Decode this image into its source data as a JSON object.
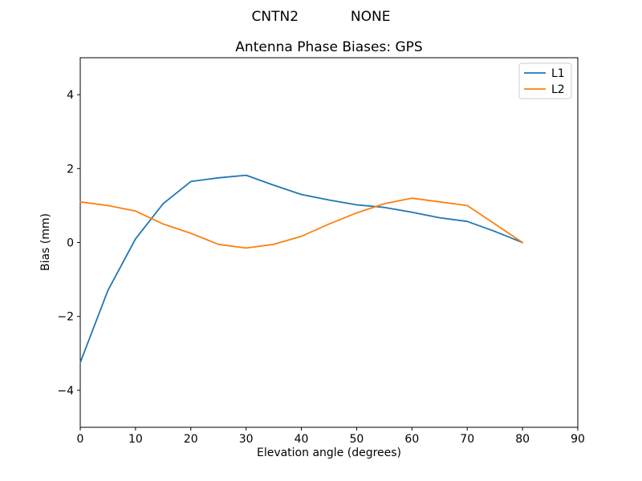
{
  "figure": {
    "suptitle": "CNTN2            NONE",
    "background": "#ffffff"
  },
  "chart_data": {
    "type": "line",
    "title": "Antenna Phase Biases: GPS",
    "xlabel": "Elevation angle (degrees)",
    "ylabel": "Bias (mm)",
    "xlim": [
      0,
      90
    ],
    "ylim": [
      -5,
      5
    ],
    "xticks": [
      0,
      10,
      20,
      30,
      40,
      50,
      60,
      70,
      80,
      90
    ],
    "yticks": [
      -4,
      -2,
      0,
      2,
      4
    ],
    "grid": false,
    "legend_position": "upper right",
    "x": [
      0,
      5,
      10,
      15,
      20,
      25,
      30,
      35,
      40,
      45,
      50,
      55,
      60,
      65,
      70,
      75,
      80
    ],
    "series": [
      {
        "name": "L1",
        "color": "#1f77b4",
        "values": [
          -3.25,
          -1.3,
          0.1,
          1.05,
          1.65,
          1.75,
          1.82,
          1.55,
          1.3,
          1.15,
          1.02,
          0.95,
          0.82,
          0.67,
          0.57,
          0.3,
          0.0
        ]
      },
      {
        "name": "L2",
        "color": "#ff7f0e",
        "values": [
          1.1,
          1.0,
          0.85,
          0.5,
          0.25,
          -0.05,
          -0.15,
          -0.05,
          0.17,
          0.5,
          0.8,
          1.05,
          1.2,
          1.1,
          1.0,
          0.5,
          0.0
        ]
      }
    ],
    "axis_color": "#000000",
    "legend_border_color": "#cccccc"
  }
}
